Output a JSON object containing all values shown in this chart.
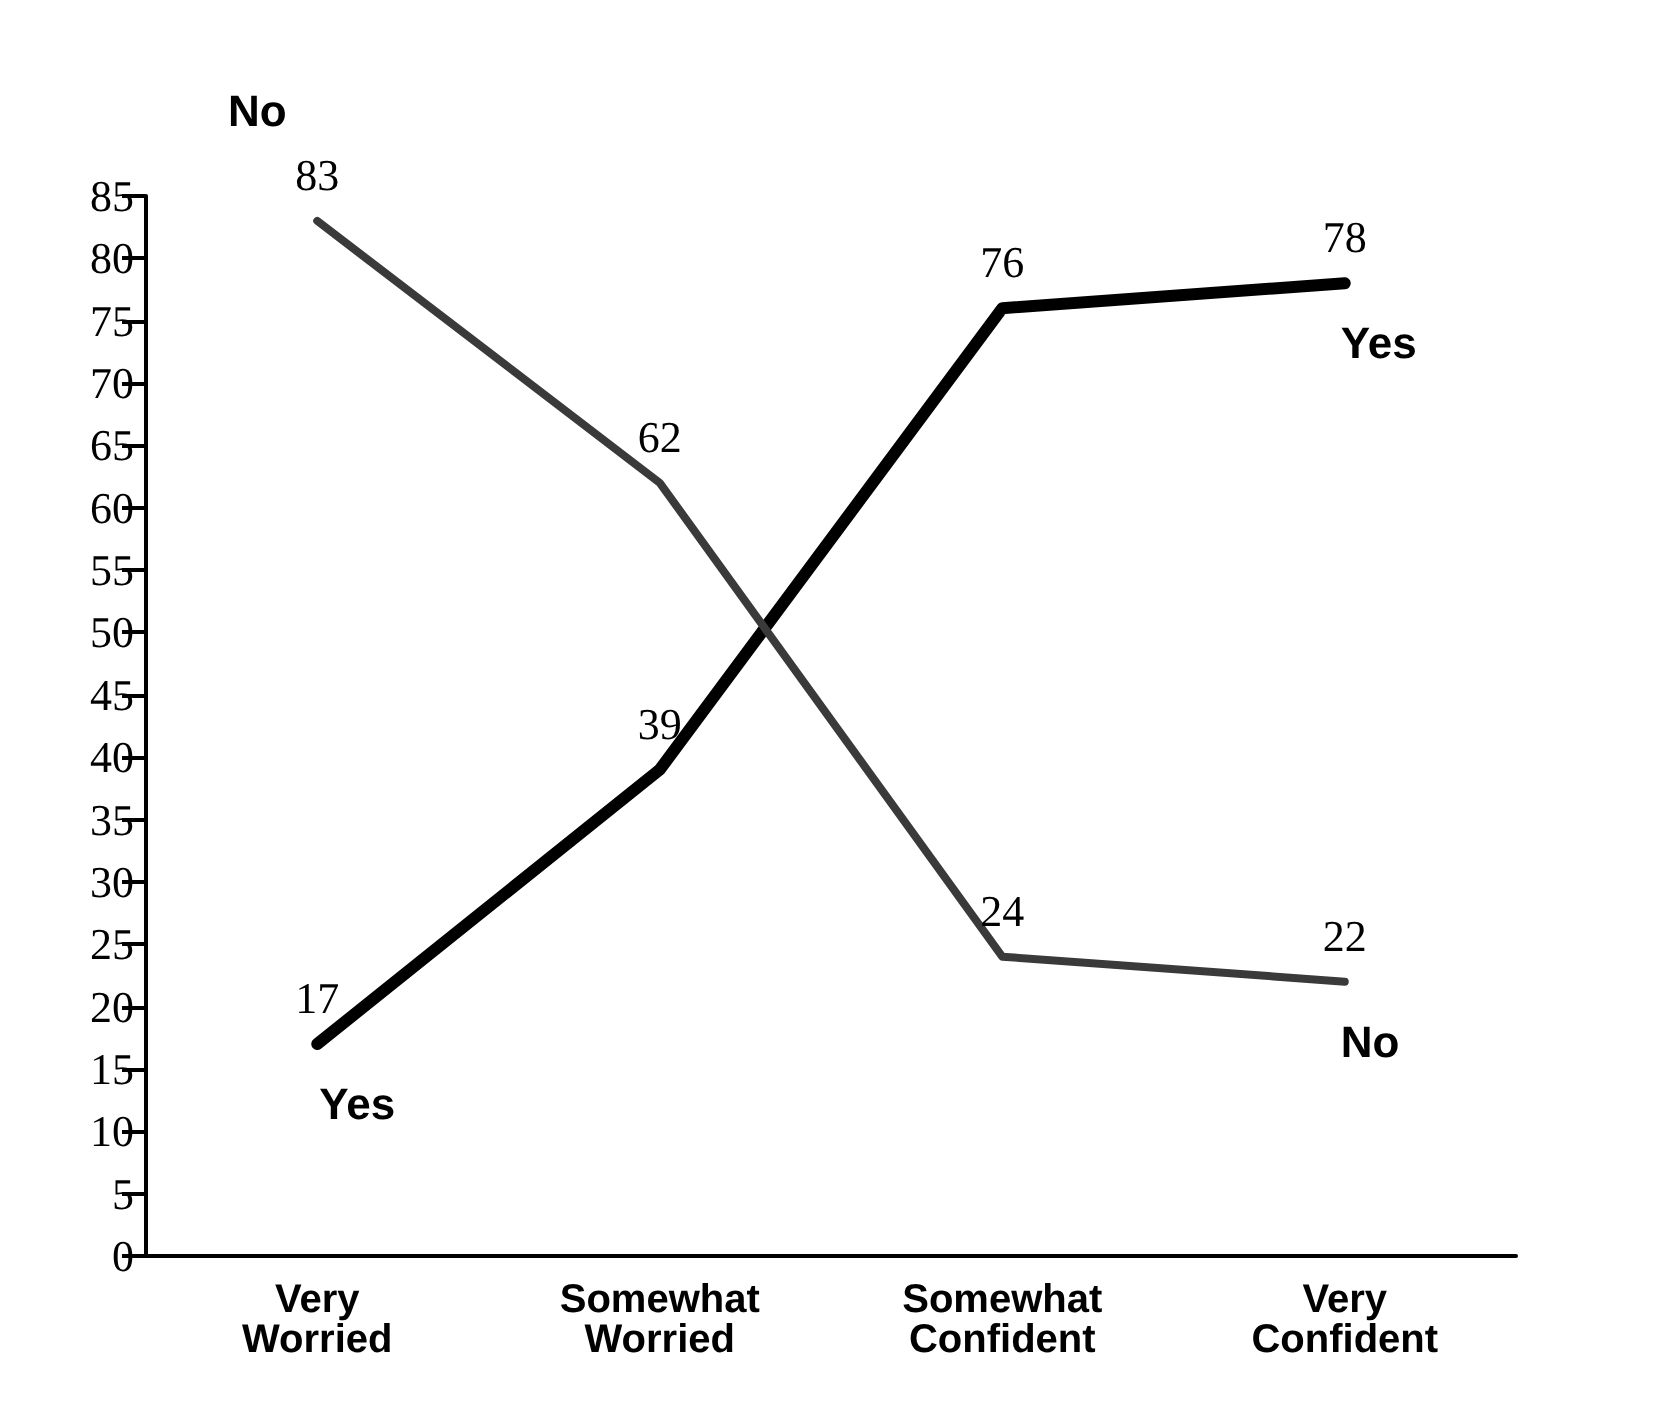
{
  "chart_data": {
    "type": "line",
    "categories": [
      "Very\nWorried",
      "Somewhat\nWorried",
      "Somewhat\nConfident",
      "Very\nConfident"
    ],
    "series": [
      {
        "name": "Yes",
        "color": "#000000",
        "values": [
          17,
          39,
          76,
          78
        ]
      },
      {
        "name": "No",
        "color": "#3a3a3a",
        "values": [
          83,
          62,
          24,
          22
        ]
      }
    ],
    "ylim": [
      0,
      85
    ],
    "yticks": [
      0,
      5,
      10,
      15,
      20,
      25,
      30,
      35,
      40,
      45,
      50,
      55,
      60,
      65,
      70,
      75,
      80,
      85
    ],
    "grid": false,
    "legend": false,
    "data_labels": true,
    "marker": "none",
    "line_style": "solid"
  }
}
